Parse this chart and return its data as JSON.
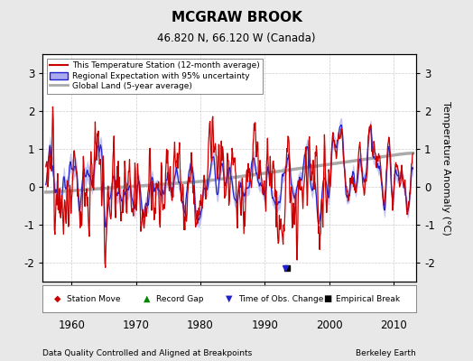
{
  "title": "MCGRAW BROOK",
  "subtitle": "46.820 N, 66.120 W (Canada)",
  "footer_left": "Data Quality Controlled and Aligned at Breakpoints",
  "footer_right": "Berkeley Earth",
  "ylabel": "Temperature Anomaly (°C)",
  "xlim": [
    1955.5,
    2013.5
  ],
  "ylim": [
    -2.5,
    3.5
  ],
  "yticks": [
    -2,
    -1,
    0,
    1,
    2,
    3
  ],
  "xticks": [
    1960,
    1970,
    1980,
    1990,
    2000,
    2010
  ],
  "legend_entries": [
    "This Temperature Station (12-month average)",
    "Regional Expectation with 95% uncertainty",
    "Global Land (5-year average)"
  ],
  "red_line_color": "#cc0000",
  "blue_line_color": "#2222cc",
  "blue_fill_color": "#aaaaee",
  "gray_line_color": "#aaaaaa",
  "background_color": "#e8e8e8",
  "plot_bg_color": "#ffffff",
  "grid_color": "#cccccc",
  "marker_colors": {
    "station_move": "#cc0000",
    "record_gap": "#008800",
    "time_obs": "#2222cc",
    "empirical_break": "#000000"
  },
  "empirical_break_year": 1993.5,
  "empirical_break_value": -2.15,
  "time_obs_year": 1993.2,
  "time_obs_value": -2.15
}
